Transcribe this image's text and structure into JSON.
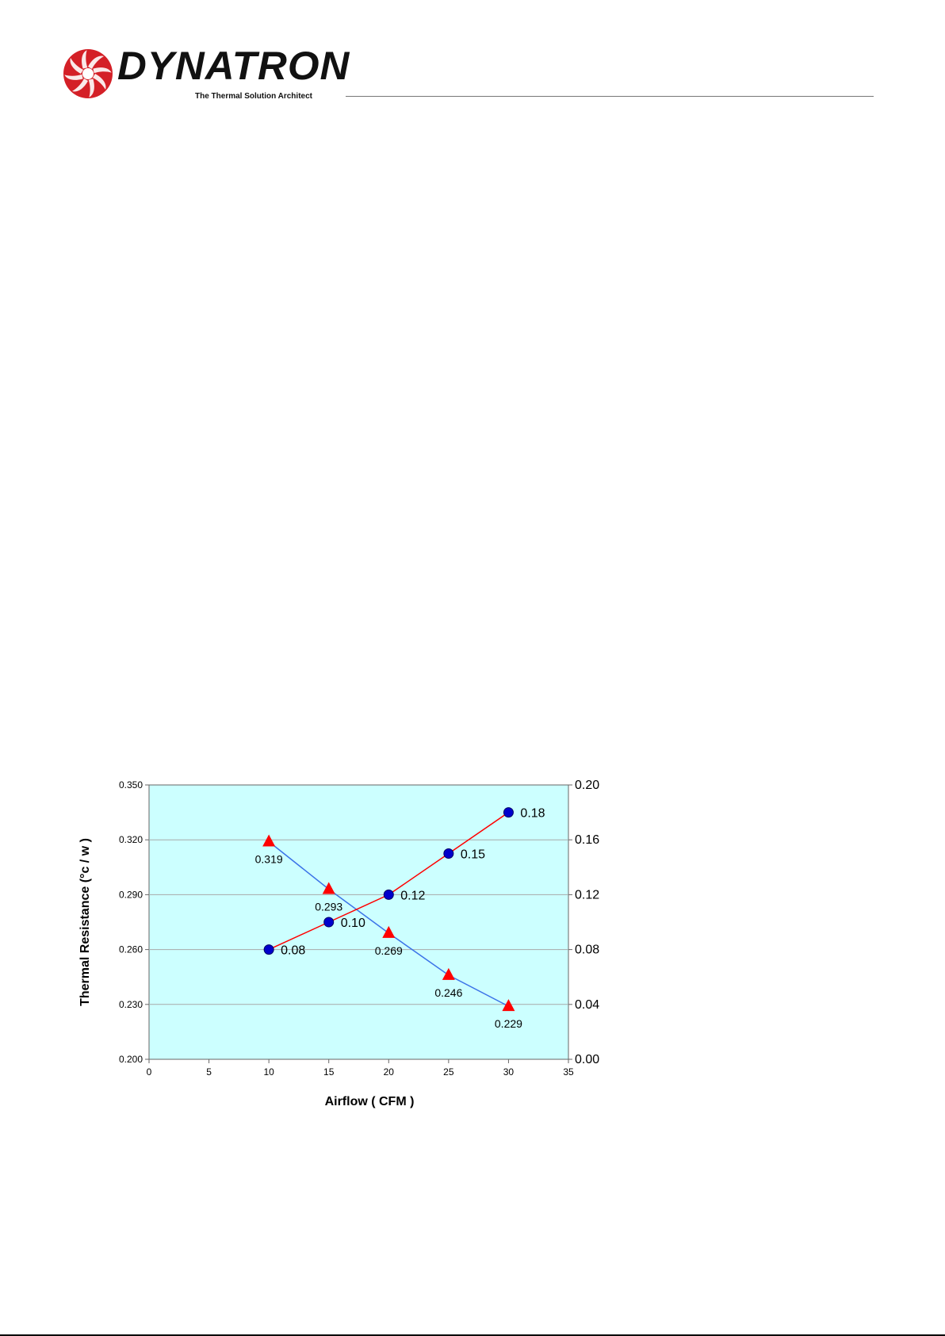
{
  "header": {
    "brand_name": "DYNATRON",
    "tagline": "The Thermal Solution Architect",
    "logo_color": "#d42027"
  },
  "chart_data": {
    "type": "line",
    "title": "",
    "xlabel": "Airflow ( CFM )",
    "ylabel": "Thermal Resistance (°c / w )",
    "y2label": "",
    "xlim": [
      0,
      35
    ],
    "ylim": [
      0.2,
      0.35
    ],
    "y2lim": [
      0,
      0.2
    ],
    "x_ticks": [
      "0",
      "5",
      "10",
      "15",
      "20",
      "25",
      "30",
      "35"
    ],
    "y_ticks": [
      "0.200",
      "0.230",
      "0.260",
      "0.290",
      "0.320",
      "0.350"
    ],
    "y2_ticks": [
      "0.00",
      "0.04",
      "0.08",
      "0.12",
      "0.16",
      "0.20"
    ],
    "grid": true,
    "plot_background": "#ccffff",
    "series": [
      {
        "axis": "left",
        "marker": "triangle",
        "marker_color": "#ff0000",
        "line_color": "#3b73e8",
        "x": [
          10,
          15,
          20,
          25,
          30
        ],
        "y": [
          0.319,
          0.293,
          0.269,
          0.246,
          0.229
        ],
        "labels": [
          "0.319",
          "0.293",
          "0.269",
          "0.246",
          "0.229"
        ]
      },
      {
        "axis": "right",
        "marker": "circle",
        "marker_color": "#0000cc",
        "line_color": "#ff0000",
        "x": [
          10,
          15,
          20,
          25,
          30
        ],
        "y": [
          0.08,
          0.1,
          0.12,
          0.15,
          0.18
        ],
        "labels": [
          "0.08",
          "0.10",
          "0.12",
          "0.15",
          "0.18"
        ]
      }
    ]
  }
}
